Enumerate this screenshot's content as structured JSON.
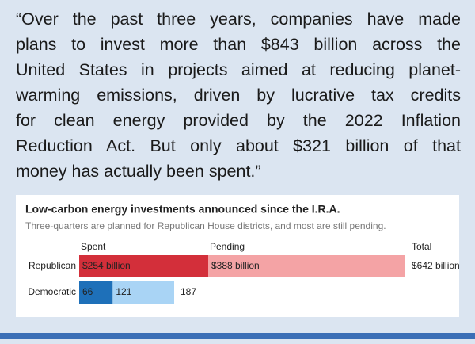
{
  "quote": {
    "lines": [
      "“Over the past three years, companies have made",
      "plans to invest more than $843 billion across the",
      "United States in projects aimed at reducing planet-",
      "warming emissions, driven by lucrative tax credits",
      "for clean energy provided by the 2022 Inflation",
      "Reduction Act. But only about $321 billion of that",
      "money has actually been spent.”"
    ]
  },
  "chart_data": {
    "type": "stacked-bar-horizontal",
    "title": "Low-carbon energy investments announced since the I.R.A.",
    "subtitle": "Three-quarters are planned for Republican House districts, and most are still pending.",
    "categories": [
      "Republican",
      "Democratic"
    ],
    "series": [
      {
        "name": "Spent",
        "colors": [
          "#d32f3a",
          "#1e70b9"
        ],
        "values": [
          254,
          66
        ],
        "value_labels": [
          "$254 billion",
          "66"
        ]
      },
      {
        "name": "Pending",
        "colors": [
          "#f4a3a5",
          "#a9d4f5"
        ],
        "values": [
          388,
          121
        ],
        "value_labels": [
          "$388 billion",
          "121"
        ]
      }
    ],
    "total": {
      "name": "Total",
      "values": [
        642,
        187
      ],
      "value_labels": [
        "$642 billion",
        "187"
      ]
    }
  }
}
